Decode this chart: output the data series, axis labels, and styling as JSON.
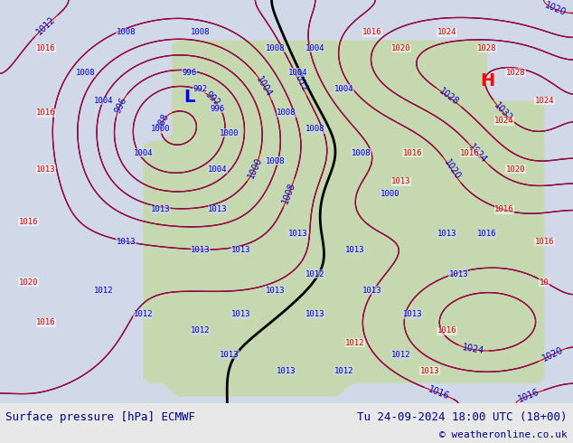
{
  "title_left": "Surface pressure [hPa] ECMWF",
  "title_right": "Tu 24-09-2024 18:00 UTC (18+00)",
  "copyright": "© weatheronline.co.uk",
  "bg_color": "#d0d8e8",
  "land_color": "#c8d8b0",
  "label_color_blue": "#0000cc",
  "label_color_red": "#cc0000",
  "label_color_black": "#000000",
  "footer_color": "#000080",
  "footer_bg": "#e8e8e8",
  "figsize": [
    6.34,
    4.9
  ],
  "dpi": 100
}
